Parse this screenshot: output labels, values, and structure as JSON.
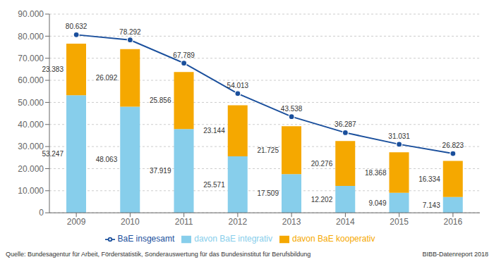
{
  "chart_data": {
    "type": "bar",
    "stacked": true,
    "data_labels": true,
    "grid": true,
    "legend": "bottom",
    "categories": [
      "2009",
      "2010",
      "2011",
      "2012",
      "2013",
      "2014",
      "2015",
      "2016"
    ],
    "series": [
      {
        "name": "davon BaE integrativ",
        "type": "bar",
        "color": "#87CEEB",
        "values": [
          53247,
          48063,
          37919,
          25571,
          17509,
          12202,
          9049,
          7143
        ],
        "value_labels": [
          "53.247",
          "48.063",
          "37.919",
          "25.571",
          "17.509",
          "12.202",
          "9.049",
          "7.143"
        ]
      },
      {
        "name": "davon BaE kooperativ",
        "type": "bar",
        "color": "#F5A800",
        "values": [
          23383,
          26092,
          25856,
          23144,
          21725,
          20276,
          18368,
          16334
        ],
        "value_labels": [
          "23.383",
          "26.092",
          "25.856",
          "23.144",
          "21.725",
          "20.276",
          "18.368",
          "16.334"
        ]
      },
      {
        "name": "BaE insgesamt",
        "type": "line",
        "color": "#1A4F9C",
        "marker": "circle",
        "values": [
          80632,
          78292,
          67789,
          54013,
          43538,
          36287,
          31031,
          26823
        ],
        "value_labels": [
          "80.632",
          "78.292",
          "67.789",
          "54.013",
          "43.538",
          "36.287",
          "31.031",
          "26.823"
        ]
      }
    ],
    "ylim": [
      0,
      90000
    ],
    "yticks": [
      0,
      {
        "value": 10000,
        "label": "10.000"
      },
      {
        "value": 20000,
        "label": "20.000"
      },
      {
        "value": 30000,
        "label": "30.000"
      },
      {
        "value": 40000,
        "label": "40.000"
      },
      {
        "value": 50000,
        "label": "50.000"
      },
      {
        "value": 60000,
        "label": "60.000"
      },
      {
        "value": 70000,
        "label": "70.000"
      },
      {
        "value": 80000,
        "label": "80.000"
      },
      {
        "value": 90000,
        "label": "90.000"
      }
    ],
    "annotations": [
      "Quelle: Bundesagentur für Arbeit, Förderstatistik, Sonderauswertung für das Bundesinstitut für Berufsbildung",
      "BIBB-Datenreport 2018"
    ]
  }
}
